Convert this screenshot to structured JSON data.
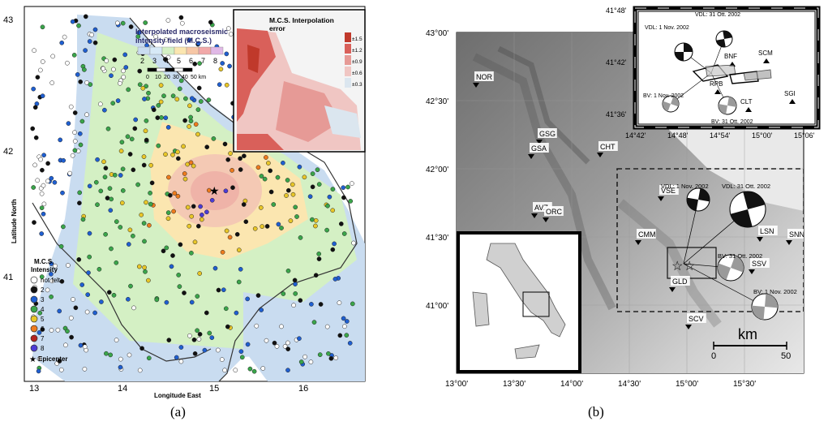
{
  "panel_a": {
    "lat_ticks": [
      "43",
      "42",
      "41"
    ],
    "lon_ticks": [
      "13",
      "14",
      "15",
      "16"
    ],
    "ylabel": "Latitude North",
    "xlabel": "Longitude East",
    "field_legend": {
      "title_line1": "Interpolated macroseismic",
      "title_line2": "intensity field (M.C.S.)",
      "classes": [
        "2",
        "3",
        "4",
        "5",
        "6",
        "7",
        "8"
      ],
      "colors": [
        "#c9dcf0",
        "#d7e9f7",
        "#d4f0c4",
        "#fbe6b0",
        "#f7c7a6",
        "#f1a8a8",
        "#e0b8e6"
      ]
    },
    "scalebar": {
      "labels": [
        "0",
        "10",
        "20",
        "30",
        "40",
        "50 km"
      ]
    },
    "error_inset": {
      "title": "M.C.S. Interpolation",
      "title2": "error",
      "levels": [
        "±1.5",
        "±1.2",
        "±0.9",
        "±0.6",
        "±0.3"
      ],
      "colors": [
        "#c0392b",
        "#d9605a",
        "#e69a96",
        "#f0c6c3",
        "#dbe6ef"
      ]
    },
    "mcs_legend": {
      "title_line1": "M.C.S.",
      "title_line2": "Intensity",
      "items": [
        {
          "label": "not felt",
          "color": "#ffffff"
        },
        {
          "label": "2",
          "color": "#111111"
        },
        {
          "label": "3",
          "color": "#1f5fd1"
        },
        {
          "label": "4",
          "color": "#3aa54a"
        },
        {
          "label": "5",
          "color": "#e8c628"
        },
        {
          "label": "6",
          "color": "#ee7b1d"
        },
        {
          "label": "7",
          "color": "#b5221f"
        },
        {
          "label": "8",
          "color": "#4b3bd6"
        }
      ],
      "epicenter_label": "Epicenter"
    }
  },
  "panel_b": {
    "lat_ticks": [
      "43°00'",
      "42°30'",
      "42°00'",
      "41°30'",
      "41°00'"
    ],
    "lon_ticks": [
      "13°00'",
      "13°30'",
      "14°00'",
      "14°30'",
      "15°00'",
      "15°30'"
    ],
    "stations": [
      "NOR",
      "GSG",
      "GSA",
      "CHT",
      "AVZ",
      "ORC",
      "VSE",
      "CMM",
      "LSN",
      "SNN",
      "SSV",
      "GLD",
      "SCV"
    ],
    "mechanisms": [
      "VDL: 1 Nov. 2002",
      "VDL: 31 Ott. 2002",
      "BV: 31 Ott. 2002",
      "BV: 1 Nov. 2002"
    ],
    "scalebar": {
      "unit": "km",
      "labels": [
        "0",
        "50"
      ]
    },
    "inset": {
      "lat_ticks": [
        "41°48'",
        "41°42'",
        "41°36'"
      ],
      "lon_ticks": [
        "14°42'",
        "14°48'",
        "14°54'",
        "15°00'",
        "15°06'"
      ],
      "stations": [
        "BNF",
        "SCM",
        "RPB",
        "SGI",
        "CLT"
      ],
      "mechanisms": [
        "VDL: 31 Ott. 2002",
        "VDL: 1 Nov. 2002",
        "BV: 1 Nov. 2002",
        "BV: 31 Ott. 2002"
      ]
    }
  },
  "captions": {
    "a": "(a)",
    "b": "(b)"
  }
}
